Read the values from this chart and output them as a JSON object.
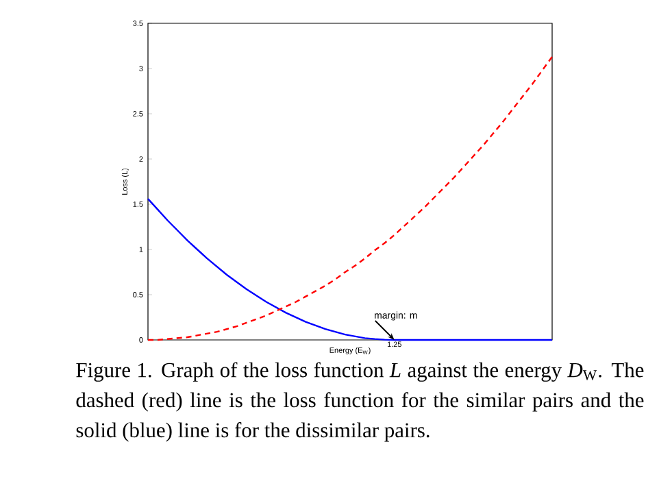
{
  "chart_data": {
    "type": "line",
    "xlabel": "Energy (E$_{W}$)",
    "ylabel": "Loss (L)",
    "categories": [
      null,
      null,
      null,
      null,
      null,
      null,
      null,
      null,
      null,
      null,
      null,
      null,
      null,
      null,
      null,
      null,
      null,
      null,
      null,
      null,
      null,
      null,
      null,
      null,
      null,
      null,
      null,
      null,
      null,
      null,
      null,
      null,
      null,
      null,
      null,
      null,
      null,
      null,
      null,
      null,
      null,
      null
    ],
    "series": [
      {
        "color": "#0000ff",
        "line_style": "solid",
        "values": [
          1.56,
          1.44,
          1.32,
          1.21,
          1.1,
          1,
          0.9,
          0.81,
          0.72,
          0.64,
          0.56,
          0.49,
          0.42,
          0.36,
          0.3,
          0.25,
          0.2,
          0.16,
          0.12,
          0.09,
          0.06,
          0.04,
          0.02,
          0.01,
          0.003,
          0,
          0,
          0,
          0,
          0,
          0,
          0,
          0,
          0,
          0,
          0,
          0,
          0,
          0,
          0,
          0,
          0
        ]
      },
      {
        "color": "#ff0000",
        "line_style": "dashed",
        "values": [
          0,
          0,
          0.01,
          0.02,
          0.03,
          0.05,
          0.07,
          0.09,
          0.12,
          0.15,
          0.19,
          0.23,
          0.27,
          0.32,
          0.37,
          0.42,
          0.48,
          0.54,
          0.6,
          0.67,
          0.75,
          0.82,
          0.9,
          0.99,
          1.07,
          1.16,
          1.26,
          1.36,
          1.46,
          1.57,
          1.68,
          1.79,
          1.91,
          2.03,
          2.15,
          2.28,
          2.41,
          2.55,
          2.69,
          2.83,
          2.98,
          3.13
        ]
      }
    ],
    "ylim": [
      0,
      3.5
    ],
    "yticks": [
      0,
      0.5,
      1,
      1.5,
      2,
      2.5,
      3,
      3.5
    ],
    "marker": "none",
    "annotations": [
      "1.25",
      "margin: m",
      "Figure 1. Graph of the loss function *L* against the energy *D*$_{W}$. The dashed (red) line is the loss function for the similar pairs and the solid (blue) line is for the dissimilar pairs."
    ]
  }
}
